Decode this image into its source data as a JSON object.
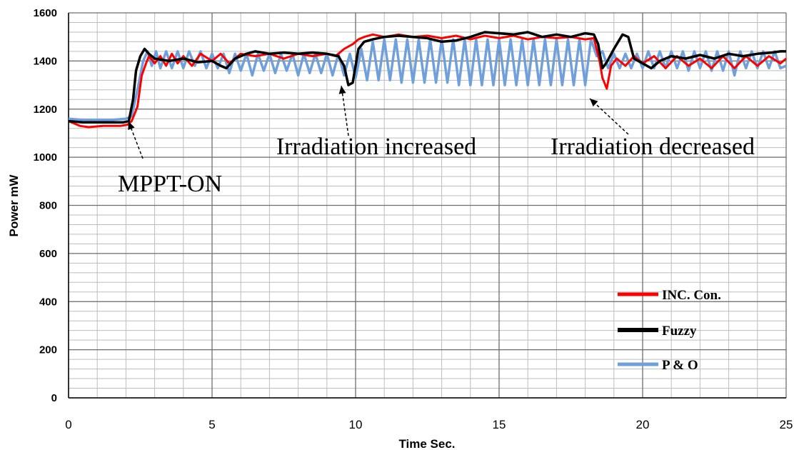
{
  "chart_data": {
    "type": "line",
    "title": "",
    "xlabel": "Time  Sec.",
    "ylabel": "Power  mW",
    "xlim": [
      0,
      25
    ],
    "ylim": [
      0,
      1600
    ],
    "x_ticks": [
      "0",
      "5",
      "10",
      "15",
      "20",
      "25"
    ],
    "y_ticks": [
      "0",
      "200",
      "400",
      "600",
      "800",
      "1000",
      "1200",
      "1400",
      "1600"
    ],
    "grid": true,
    "legend_position": "bottom-right",
    "annotations": [
      {
        "text": "MPPT-ON",
        "x": 2.2,
        "y": 1130
      },
      {
        "text": "Irradiation increased",
        "x": 9.6,
        "y": 1300
      },
      {
        "text": "Irradiation decreased",
        "x": 18.1,
        "y": 1300
      }
    ],
    "series": [
      {
        "name": "INC. Con.",
        "color": "#ff0000",
        "points": [
          [
            0,
            1150
          ],
          [
            0.4,
            1130
          ],
          [
            0.7,
            1125
          ],
          [
            1.2,
            1130
          ],
          [
            1.8,
            1130
          ],
          [
            2.05,
            1135
          ],
          [
            2.2,
            1150
          ],
          [
            2.4,
            1210
          ],
          [
            2.55,
            1340
          ],
          [
            2.7,
            1390
          ],
          [
            2.8,
            1420
          ],
          [
            3.0,
            1390
          ],
          [
            3.2,
            1420
          ],
          [
            3.4,
            1380
          ],
          [
            3.6,
            1430
          ],
          [
            3.8,
            1390
          ],
          [
            4.0,
            1420
          ],
          [
            4.3,
            1380
          ],
          [
            4.6,
            1430
          ],
          [
            5.0,
            1400
          ],
          [
            5.3,
            1430
          ],
          [
            5.6,
            1390
          ],
          [
            6.0,
            1430
          ],
          [
            6.5,
            1420
          ],
          [
            7.0,
            1430
          ],
          [
            7.5,
            1410
          ],
          [
            8.0,
            1430
          ],
          [
            8.5,
            1420
          ],
          [
            9.0,
            1430
          ],
          [
            9.3,
            1420
          ],
          [
            9.6,
            1450
          ],
          [
            9.9,
            1470
          ],
          [
            10.1,
            1490
          ],
          [
            10.3,
            1500
          ],
          [
            10.6,
            1510
          ],
          [
            11.0,
            1500
          ],
          [
            11.5,
            1510
          ],
          [
            12.0,
            1500
          ],
          [
            12.5,
            1505
          ],
          [
            13.0,
            1495
          ],
          [
            13.5,
            1505
          ],
          [
            14.0,
            1490
          ],
          [
            14.5,
            1505
          ],
          [
            15.0,
            1495
          ],
          [
            15.5,
            1505
          ],
          [
            16.0,
            1490
          ],
          [
            16.5,
            1500
          ],
          [
            17.0,
            1495
          ],
          [
            17.5,
            1500
          ],
          [
            18.0,
            1490
          ],
          [
            18.3,
            1495
          ],
          [
            18.5,
            1400
          ],
          [
            18.6,
            1330
          ],
          [
            18.75,
            1285
          ],
          [
            18.9,
            1380
          ],
          [
            19.1,
            1410
          ],
          [
            19.4,
            1380
          ],
          [
            19.7,
            1420
          ],
          [
            20.0,
            1390
          ],
          [
            20.4,
            1420
          ],
          [
            20.8,
            1370
          ],
          [
            21.2,
            1420
          ],
          [
            21.6,
            1380
          ],
          [
            22.0,
            1410
          ],
          [
            22.4,
            1370
          ],
          [
            22.8,
            1420
          ],
          [
            23.2,
            1370
          ],
          [
            23.6,
            1420
          ],
          [
            24.0,
            1380
          ],
          [
            24.4,
            1420
          ],
          [
            24.8,
            1390
          ],
          [
            25,
            1410
          ]
        ]
      },
      {
        "name": "Fuzzy",
        "color": "#000000",
        "points": [
          [
            0,
            1150
          ],
          [
            0.5,
            1145
          ],
          [
            1.0,
            1145
          ],
          [
            1.5,
            1145
          ],
          [
            1.9,
            1145
          ],
          [
            2.1,
            1150
          ],
          [
            2.25,
            1240
          ],
          [
            2.35,
            1360
          ],
          [
            2.5,
            1420
          ],
          [
            2.65,
            1450
          ],
          [
            2.8,
            1430
          ],
          [
            3.0,
            1410
          ],
          [
            3.5,
            1400
          ],
          [
            4.0,
            1410
          ],
          [
            4.5,
            1395
          ],
          [
            5.0,
            1400
          ],
          [
            5.3,
            1380
          ],
          [
            5.5,
            1370
          ],
          [
            5.8,
            1410
          ],
          [
            6.2,
            1430
          ],
          [
            6.5,
            1440
          ],
          [
            7.0,
            1430
          ],
          [
            7.5,
            1435
          ],
          [
            8.0,
            1430
          ],
          [
            8.5,
            1435
          ],
          [
            9.0,
            1430
          ],
          [
            9.4,
            1420
          ],
          [
            9.6,
            1380
          ],
          [
            9.75,
            1300
          ],
          [
            9.9,
            1310
          ],
          [
            10.1,
            1450
          ],
          [
            10.3,
            1480
          ],
          [
            10.6,
            1490
          ],
          [
            11.0,
            1500
          ],
          [
            11.5,
            1505
          ],
          [
            12.0,
            1500
          ],
          [
            12.5,
            1495
          ],
          [
            13.0,
            1480
          ],
          [
            13.5,
            1485
          ],
          [
            14.0,
            1500
          ],
          [
            14.5,
            1520
          ],
          [
            15.0,
            1515
          ],
          [
            15.5,
            1510
          ],
          [
            16.0,
            1520
          ],
          [
            16.5,
            1500
          ],
          [
            17.0,
            1510
          ],
          [
            17.5,
            1500
          ],
          [
            18.0,
            1515
          ],
          [
            18.3,
            1510
          ],
          [
            18.45,
            1470
          ],
          [
            18.6,
            1370
          ],
          [
            18.75,
            1395
          ],
          [
            19.0,
            1450
          ],
          [
            19.3,
            1510
          ],
          [
            19.5,
            1500
          ],
          [
            19.7,
            1410
          ],
          [
            20.0,
            1390
          ],
          [
            20.3,
            1370
          ],
          [
            20.6,
            1400
          ],
          [
            21.0,
            1420
          ],
          [
            21.5,
            1410
          ],
          [
            22.0,
            1425
          ],
          [
            22.5,
            1410
          ],
          [
            23.0,
            1430
          ],
          [
            23.5,
            1420
          ],
          [
            24.0,
            1430
          ],
          [
            24.5,
            1435
          ],
          [
            24.8,
            1440
          ],
          [
            25,
            1440
          ]
        ]
      },
      {
        "name": "P & O",
        "color": "#6fa0dc",
        "points": [
          [
            0,
            1160
          ],
          [
            0.5,
            1155
          ],
          [
            1.0,
            1155
          ],
          [
            1.5,
            1155
          ],
          [
            2.0,
            1160
          ],
          [
            2.2,
            1170
          ],
          [
            2.4,
            1280
          ],
          [
            2.6,
            1400
          ],
          [
            2.75,
            1440
          ],
          [
            2.9,
            1380
          ],
          [
            3.05,
            1440
          ],
          [
            3.2,
            1370
          ],
          [
            3.4,
            1440
          ],
          [
            3.6,
            1370
          ],
          [
            3.8,
            1440
          ],
          [
            4.0,
            1370
          ],
          [
            4.2,
            1440
          ],
          [
            4.4,
            1380
          ],
          [
            4.6,
            1440
          ],
          [
            4.8,
            1370
          ],
          [
            5.0,
            1430
          ],
          [
            5.2,
            1370
          ],
          [
            5.4,
            1430
          ],
          [
            5.6,
            1350
          ],
          [
            5.8,
            1430
          ],
          [
            6.0,
            1360
          ],
          [
            6.2,
            1430
          ],
          [
            6.4,
            1340
          ],
          [
            6.6,
            1430
          ],
          [
            6.8,
            1360
          ],
          [
            7.0,
            1430
          ],
          [
            7.2,
            1350
          ],
          [
            7.4,
            1430
          ],
          [
            7.6,
            1360
          ],
          [
            7.8,
            1430
          ],
          [
            8.0,
            1340
          ],
          [
            8.2,
            1430
          ],
          [
            8.4,
            1350
          ],
          [
            8.6,
            1430
          ],
          [
            8.8,
            1350
          ],
          [
            9.0,
            1430
          ],
          [
            9.2,
            1340
          ],
          [
            9.4,
            1430
          ],
          [
            9.6,
            1340
          ],
          [
            9.8,
            1430
          ],
          [
            10.0,
            1330
          ],
          [
            10.2,
            1450
          ],
          [
            10.4,
            1320
          ],
          [
            10.6,
            1480
          ],
          [
            10.8,
            1320
          ],
          [
            11.0,
            1490
          ],
          [
            11.2,
            1320
          ],
          [
            11.4,
            1490
          ],
          [
            11.6,
            1310
          ],
          [
            11.8,
            1490
          ],
          [
            12.0,
            1310
          ],
          [
            12.2,
            1490
          ],
          [
            12.4,
            1310
          ],
          [
            12.6,
            1490
          ],
          [
            12.8,
            1310
          ],
          [
            13.0,
            1490
          ],
          [
            13.2,
            1310
          ],
          [
            13.4,
            1490
          ],
          [
            13.6,
            1300
          ],
          [
            13.8,
            1490
          ],
          [
            14.0,
            1300
          ],
          [
            14.2,
            1490
          ],
          [
            14.4,
            1300
          ],
          [
            14.6,
            1490
          ],
          [
            14.8,
            1300
          ],
          [
            15.0,
            1490
          ],
          [
            15.2,
            1300
          ],
          [
            15.4,
            1490
          ],
          [
            15.6,
            1300
          ],
          [
            15.8,
            1490
          ],
          [
            16.0,
            1300
          ],
          [
            16.2,
            1490
          ],
          [
            16.4,
            1300
          ],
          [
            16.6,
            1490
          ],
          [
            16.8,
            1300
          ],
          [
            17.0,
            1490
          ],
          [
            17.2,
            1300
          ],
          [
            17.4,
            1490
          ],
          [
            17.6,
            1300
          ],
          [
            17.8,
            1490
          ],
          [
            18.0,
            1300
          ],
          [
            18.2,
            1490
          ],
          [
            18.4,
            1420
          ],
          [
            18.6,
            1440
          ],
          [
            18.8,
            1370
          ],
          [
            19.0,
            1430
          ],
          [
            19.2,
            1370
          ],
          [
            19.4,
            1430
          ],
          [
            19.6,
            1370
          ],
          [
            19.8,
            1430
          ],
          [
            20.0,
            1370
          ],
          [
            20.2,
            1440
          ],
          [
            20.4,
            1370
          ],
          [
            20.6,
            1440
          ],
          [
            20.8,
            1370
          ],
          [
            21.0,
            1440
          ],
          [
            21.2,
            1370
          ],
          [
            21.4,
            1440
          ],
          [
            21.6,
            1360
          ],
          [
            21.8,
            1440
          ],
          [
            22.0,
            1370
          ],
          [
            22.2,
            1440
          ],
          [
            22.4,
            1360
          ],
          [
            22.6,
            1440
          ],
          [
            22.8,
            1360
          ],
          [
            23.0,
            1440
          ],
          [
            23.2,
            1340
          ],
          [
            23.4,
            1440
          ],
          [
            23.6,
            1370
          ],
          [
            23.8,
            1440
          ],
          [
            24.0,
            1370
          ],
          [
            24.2,
            1440
          ],
          [
            24.4,
            1370
          ],
          [
            24.6,
            1440
          ],
          [
            24.8,
            1370
          ],
          [
            25,
            1380
          ]
        ]
      }
    ]
  }
}
